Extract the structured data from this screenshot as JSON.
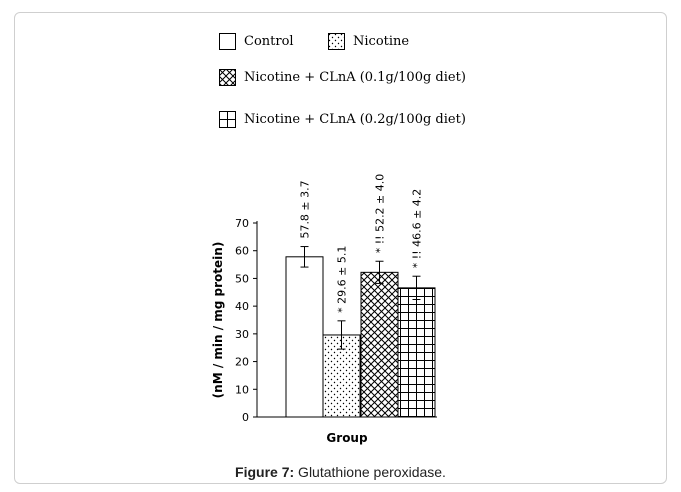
{
  "legend": [
    {
      "label": "Control",
      "pattern": "none"
    },
    {
      "label": "Nicotine",
      "pattern": "dots"
    },
    {
      "label": "Nicotine + CLnA (0.1g/100g diet)",
      "pattern": "diagonal"
    },
    {
      "label": "Nicotine + CLnA (0.2g/100g diet)",
      "pattern": "grid"
    }
  ],
  "caption": {
    "label": "Figure 7:",
    "text": " Glutathione peroxidase."
  },
  "chart_data": {
    "type": "bar",
    "categories": [
      "Control",
      "Nicotine",
      "Nicotine + CLnA (0.1g/100g diet)",
      "Nicotine + CLnA (0.2g/100g diet)"
    ],
    "values": [
      57.8,
      29.6,
      52.2,
      46.6
    ],
    "errors": [
      3.7,
      5.1,
      4.0,
      4.2
    ],
    "bar_labels": [
      "57.8 ± 3.7",
      "* 29.6 ± 5.1",
      "* !! 52.2 ± 4.0",
      "* !! 46.6 ± 4.2"
    ],
    "ylabel": "(nM / min / mg protein)",
    "xlabel": "Group",
    "ylim": [
      0,
      70
    ],
    "yticks": [
      0,
      10,
      20,
      30,
      40,
      50,
      60,
      70
    ]
  }
}
